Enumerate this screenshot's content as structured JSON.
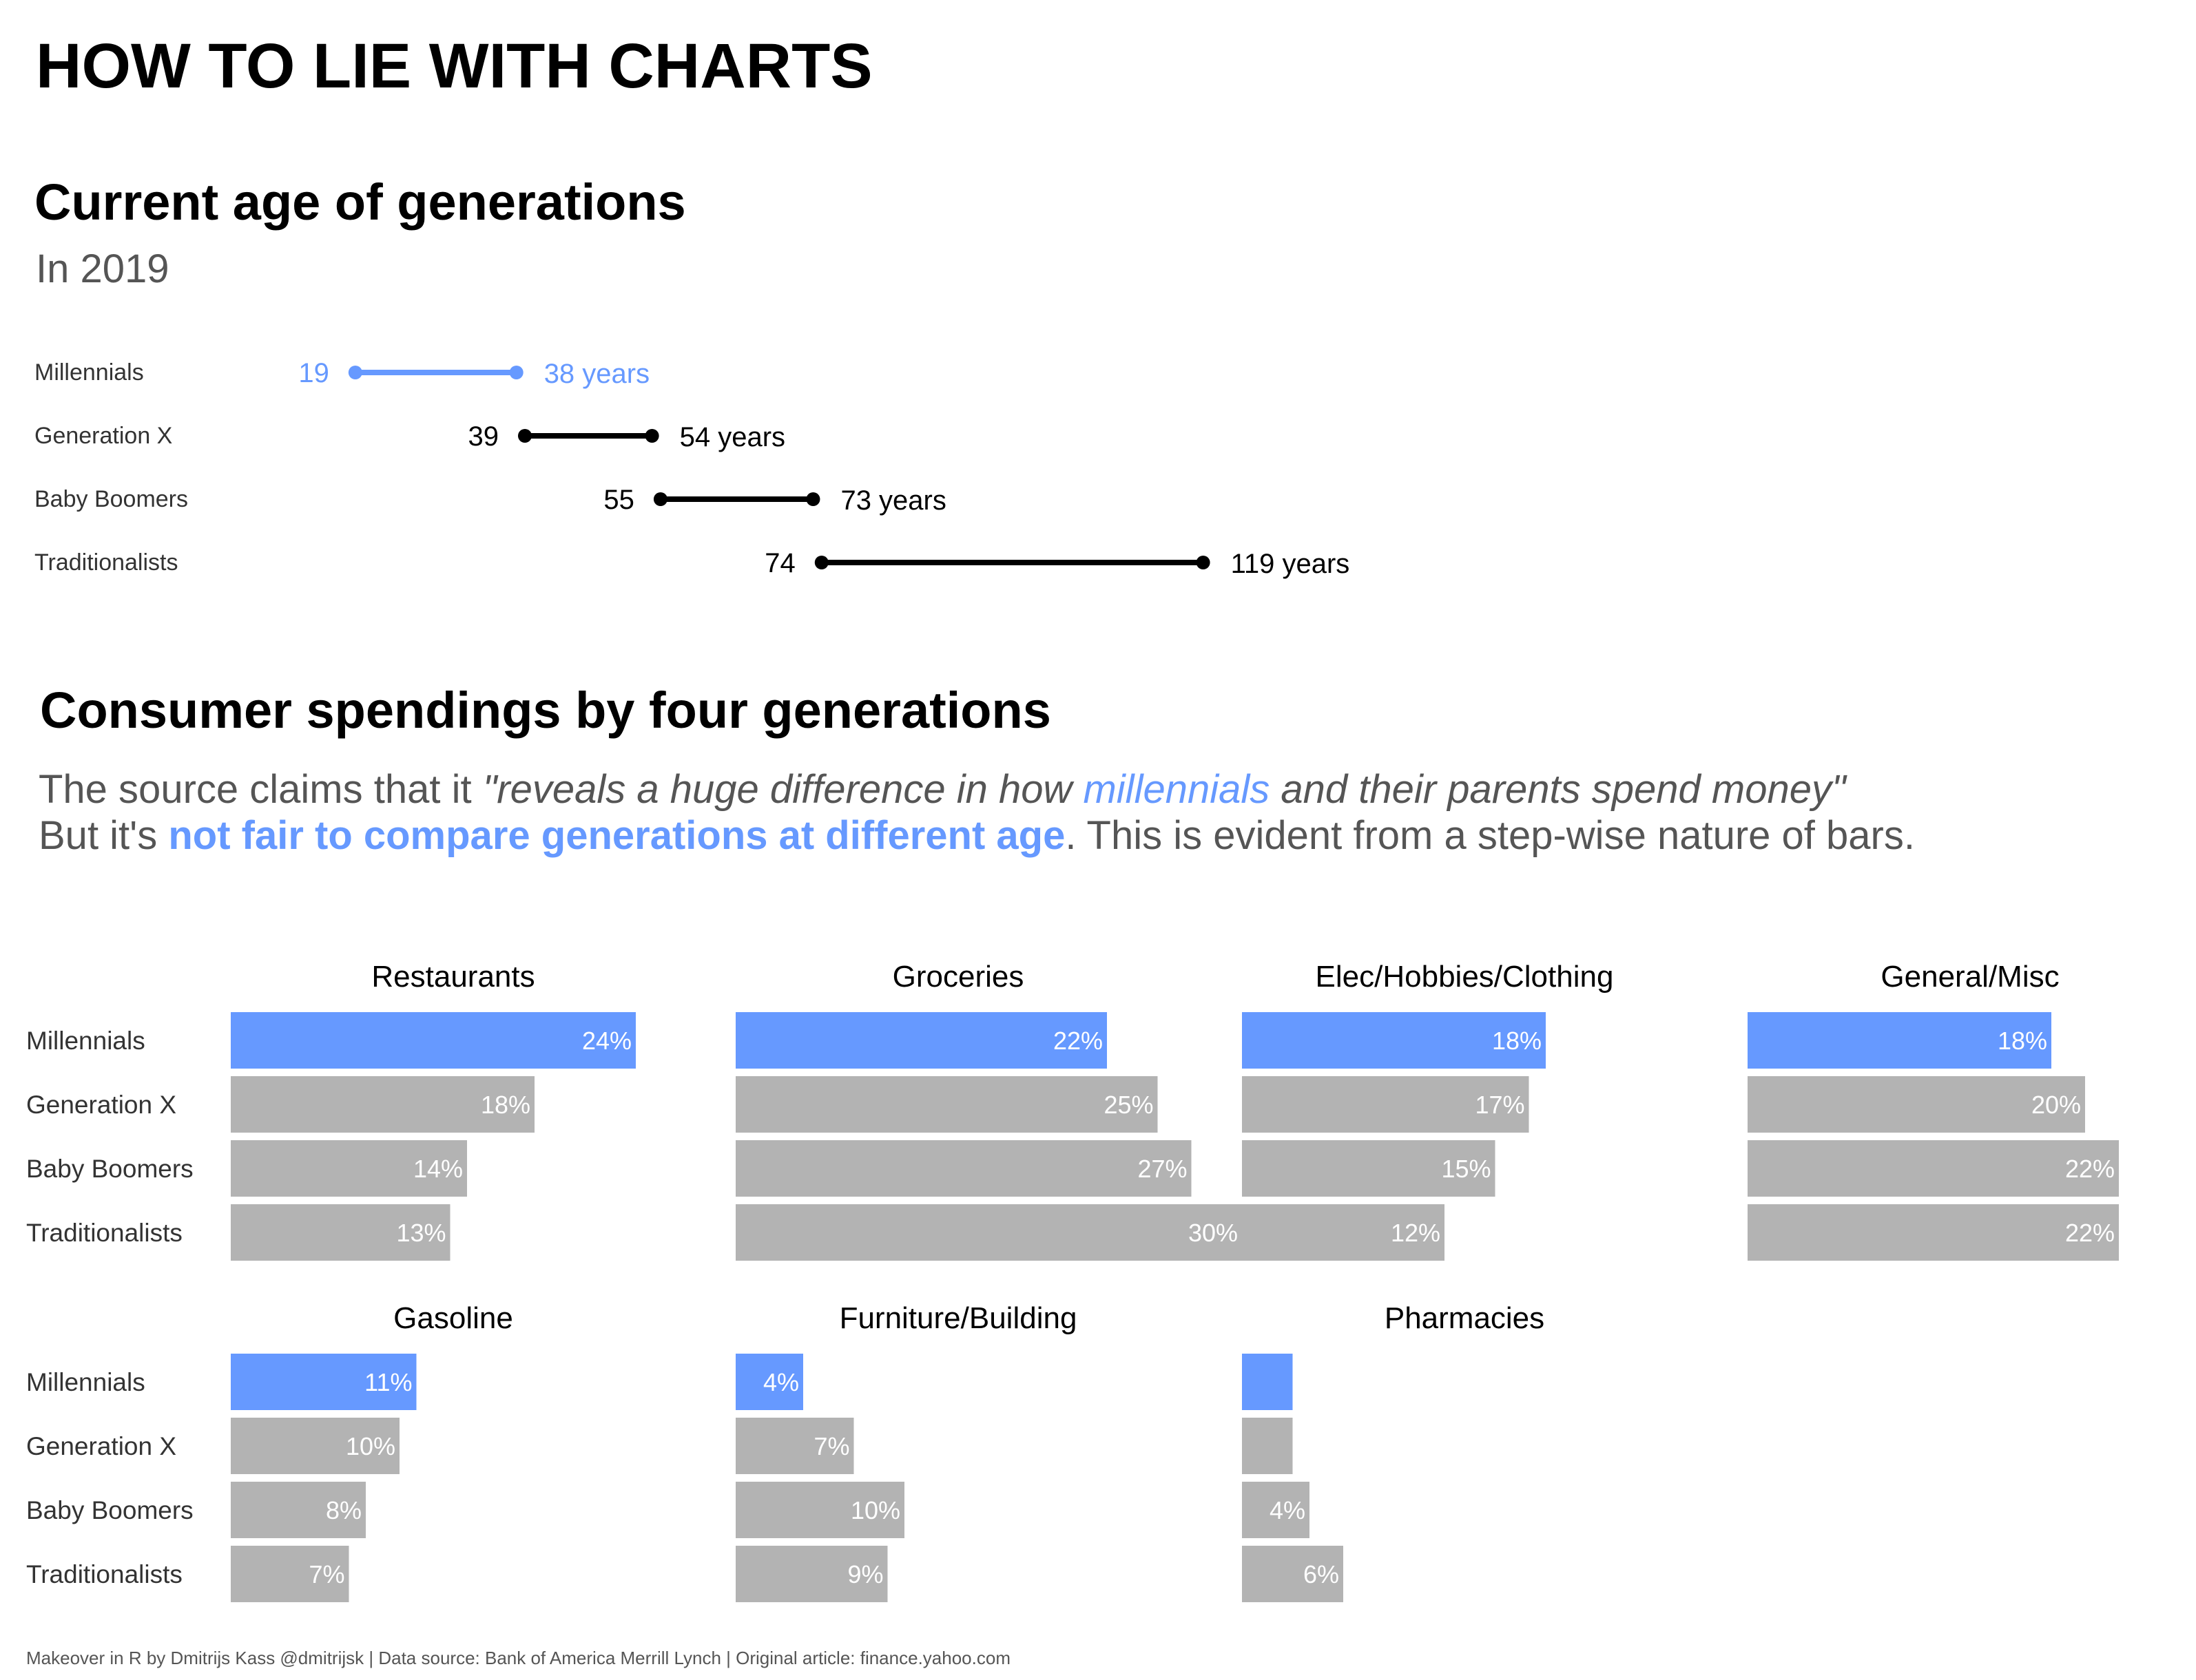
{
  "main_title": "HOW TO LIE WITH CHARTS",
  "age_chart": {
    "title": "Current age of generations",
    "subtitle": "In 2019"
  },
  "spend_chart": {
    "title": "Consumer spendings by four generations",
    "description": {
      "line1_a": "The source claims that it ",
      "line1_b": "\"reveals a huge difference in how ",
      "line1_c": "millennials",
      "line1_d": " and their parents spend money\"",
      "line2_a": "But it's ",
      "line2_b": "not fair to compare generations at different age",
      "line2_c": ". This is evident from a step-wise nature of bars."
    }
  },
  "footer": "Makeover in R by Dmitrijs Kass @dmitrijsk | Data source: Bank of America Merrill Lynch | Original article: finance.yahoo.com",
  "colors": {
    "highlight": "#6699ff",
    "bar": "#b3b3b3",
    "dark": "#000000",
    "muted": "#555555"
  },
  "chart_data": [
    {
      "type": "dumbbell",
      "title": "Current age of generations",
      "subtitle": "In 2019",
      "unit_suffix": " years",
      "xlim": [
        0,
        130
      ],
      "series": [
        {
          "name": "Millennials",
          "start": 19,
          "end": 38,
          "highlight": true
        },
        {
          "name": "Generation X",
          "start": 39,
          "end": 54,
          "highlight": false
        },
        {
          "name": "Baby Boomers",
          "start": 55,
          "end": 73,
          "highlight": false
        },
        {
          "name": "Traditionalists",
          "start": 74,
          "end": 119,
          "highlight": false
        }
      ]
    },
    {
      "type": "bar",
      "title": "Consumer spendings by four generations",
      "categories": [
        "Millennials",
        "Generation X",
        "Baby Boomers",
        "Traditionalists"
      ],
      "highlight_category": "Millennials",
      "xlim": [
        0,
        30
      ],
      "panels": [
        {
          "name": "Restaurants",
          "values": [
            24,
            18,
            14,
            13
          ],
          "labels": [
            "24%",
            "18%",
            "14%",
            "13%"
          ]
        },
        {
          "name": "Groceries",
          "values": [
            22,
            25,
            27,
            30
          ],
          "labels": [
            "22%",
            "25%",
            "27%",
            "30%"
          ]
        },
        {
          "name": "Elec/Hobbies/Clothing",
          "values": [
            18,
            17,
            15,
            12
          ],
          "labels": [
            "18%",
            "17%",
            "15%",
            "12%"
          ]
        },
        {
          "name": "General/Misc",
          "values": [
            18,
            20,
            22,
            22
          ],
          "labels": [
            "18%",
            "20%",
            "22%",
            "22%"
          ]
        },
        {
          "name": "Gasoline",
          "values": [
            11,
            10,
            8,
            7
          ],
          "labels": [
            "11%",
            "10%",
            "8%",
            "7%"
          ]
        },
        {
          "name": "Furniture/Building",
          "values": [
            4,
            7,
            10,
            9
          ],
          "labels": [
            "4%",
            "7%",
            "10%",
            "9%"
          ]
        },
        {
          "name": "Pharmacies",
          "values": [
            3,
            3,
            4,
            6
          ],
          "labels": [
            "",
            "",
            "4%",
            "6%"
          ]
        }
      ]
    }
  ]
}
